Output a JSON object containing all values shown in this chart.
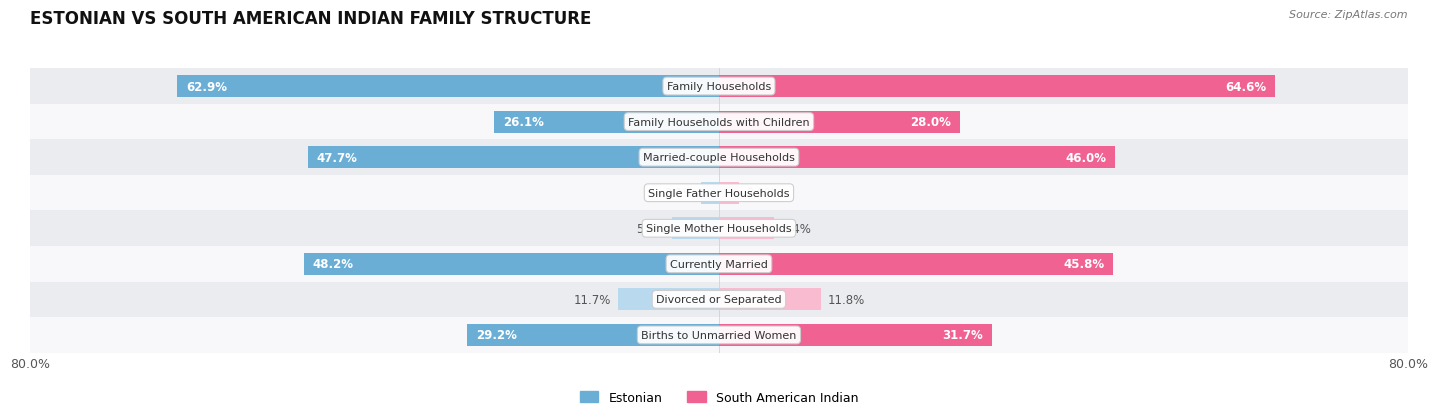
{
  "title": "ESTONIAN VS SOUTH AMERICAN INDIAN FAMILY STRUCTURE",
  "source": "Source: ZipAtlas.com",
  "categories": [
    "Family Households",
    "Family Households with Children",
    "Married-couple Households",
    "Single Father Households",
    "Single Mother Households",
    "Currently Married",
    "Divorced or Separated",
    "Births to Unmarried Women"
  ],
  "estonian_values": [
    62.9,
    26.1,
    47.7,
    2.1,
    5.4,
    48.2,
    11.7,
    29.2
  ],
  "south_american_values": [
    64.6,
    28.0,
    46.0,
    2.3,
    6.4,
    45.8,
    11.8,
    31.7
  ],
  "estonian_color_large": "#6AAED6",
  "estonian_color_small": "#B8D9EE",
  "south_american_color_large": "#F06292",
  "south_american_color_small": "#F9BBCF",
  "estonian_label": "Estonian",
  "south_american_label": "South American Indian",
  "xlim": 80.0,
  "bar_height": 0.62,
  "row_bg_odd": "#EAECF0",
  "row_bg_even": "#F8F8FA",
  "axis_label_left": "80.0%",
  "axis_label_right": "80.0%",
  "label_fontsize": 8.5,
  "title_fontsize": 12,
  "source_fontsize": 8,
  "legend_fontsize": 9,
  "label_color_dark": "#555555",
  "label_color_white": "#FFFFFF",
  "large_threshold": 15
}
